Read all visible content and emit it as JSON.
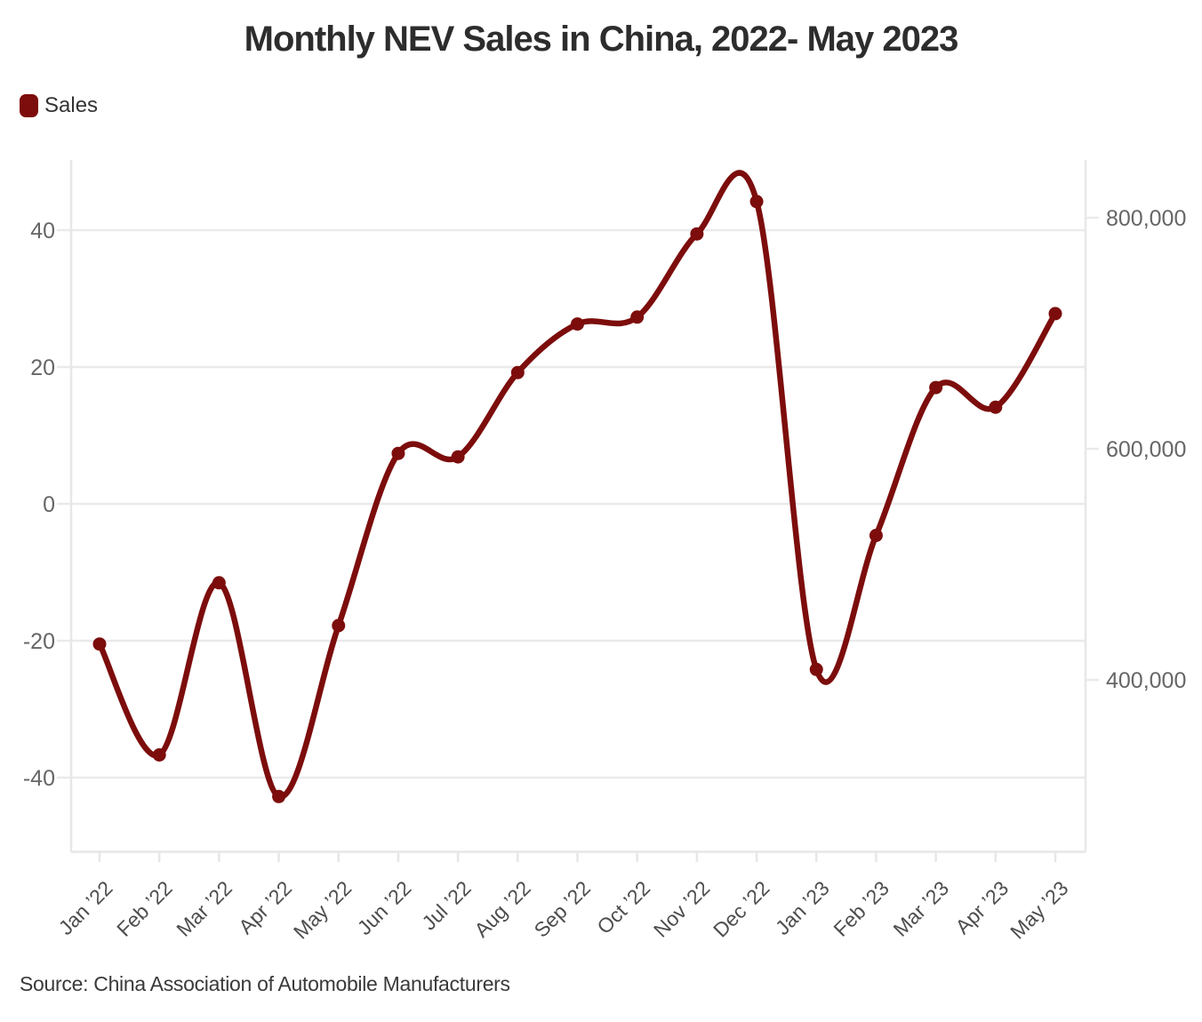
{
  "chart_data": {
    "type": "line",
    "title": "Monthly NEV Sales in China, 2022- May 2023",
    "source": "Source: China Association of Automobile Manufacturers",
    "legend_position": "top-left",
    "grid": "horizontal",
    "categories": [
      "Jan ’22",
      "Feb ’22",
      "Mar ’22",
      "Apr ’22",
      "May ’22",
      "Jun ’22",
      "Jul ’22",
      "Aug ’22",
      "Sep ’22",
      "Oct ’22",
      "Nov ’22",
      "Dec ’22",
      "Jan ’23",
      "Feb ’23",
      "Mar ’23",
      "Apr ’23",
      "May ’23"
    ],
    "series": [
      {
        "name": "Sales",
        "color": "#7c0d0c",
        "axis": "right",
        "values": [
          431000,
          335000,
          484000,
          299000,
          447000,
          596000,
          593000,
          666000,
          708000,
          714000,
          786000,
          814000,
          409000,
          525000,
          653000,
          636000,
          717000
        ]
      }
    ],
    "left_axis": {
      "ticks": [
        40,
        20,
        0,
        -20,
        -40
      ],
      "range": [
        -50.5,
        50.5
      ]
    },
    "right_axis": {
      "ticks": [
        800000,
        600000,
        400000
      ],
      "range": [
        250800,
        850000
      ],
      "format": "comma"
    }
  },
  "colors": {
    "series": "#7c0d0c",
    "grid": "#eaeaea",
    "axis_line": "#e7e7e7",
    "y_label_text": "#666666",
    "x_label_text": "#4d4d4d",
    "title_text": "#2d2d2d",
    "source_text": "#3a3a3a",
    "background": "#ffffff"
  }
}
